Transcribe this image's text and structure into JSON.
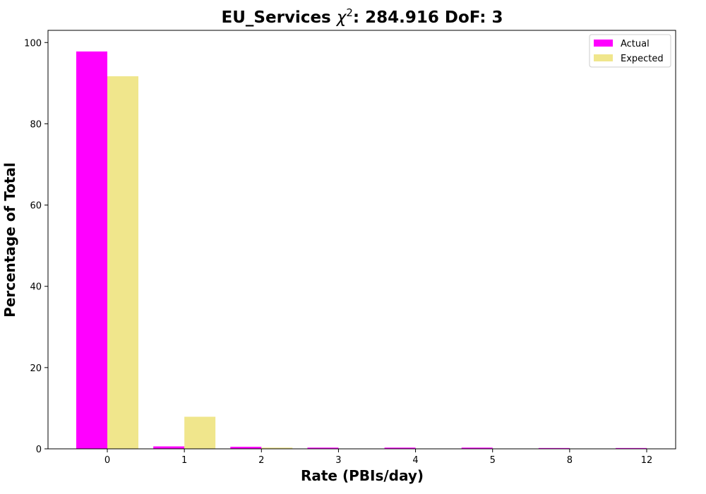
{
  "chart_data": {
    "type": "bar",
    "title_prefix": "EU_Services ",
    "title_chi": "χ",
    "title_sup": "2",
    "title_suffix": ": 284.916 DoF: 3",
    "xlabel": "Rate (PBIs/day)",
    "ylabel": "Percentage of Total",
    "categories": [
      "0",
      "1",
      "2",
      "3",
      "4",
      "5",
      "8",
      "12"
    ],
    "series": [
      {
        "name": "Actual",
        "color": "#ff00ff",
        "values": [
          97.8,
          0.6,
          0.5,
          0.3,
          0.3,
          0.3,
          0.2,
          0.2
        ]
      },
      {
        "name": "Expected",
        "color": "#f0e68c",
        "values": [
          91.7,
          7.9,
          0.3,
          0.02,
          0.0,
          0.0,
          0.0,
          0.0
        ]
      }
    ],
    "ylim": [
      0,
      103
    ],
    "yticks": [
      "0",
      "20",
      "40",
      "60",
      "80",
      "100"
    ],
    "grid": false,
    "legend_position": "top-right"
  }
}
